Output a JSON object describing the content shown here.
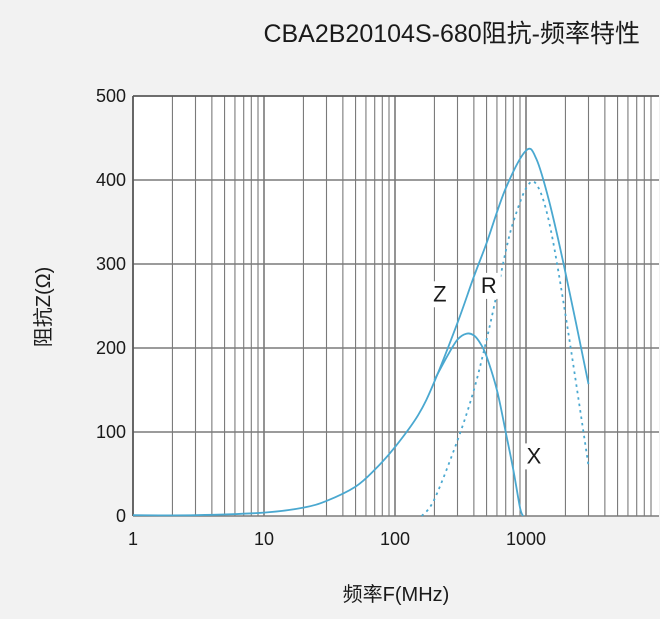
{
  "chart_data": {
    "type": "line",
    "title": "CBA2B20104S-680阻抗-频率特性",
    "xlabel": "频率F(MHz)",
    "ylabel": "阻抗Z(Ω)",
    "x_scale": "log",
    "xlim": [
      1,
      10000
    ],
    "ylim": [
      0,
      500
    ],
    "x_ticks": [
      "1",
      "10",
      "100",
      "1000"
    ],
    "y_ticks": [
      "0",
      "100",
      "200",
      "300",
      "400",
      "500"
    ],
    "grid": true,
    "colors": {
      "curve": "#4aa8d0",
      "grid": "#7a7a7a",
      "background": "#ffffff",
      "page": "#f2f2f2"
    },
    "series": [
      {
        "name": "Z",
        "style": "solid",
        "points": [
          [
            1,
            1
          ],
          [
            3,
            1
          ],
          [
            10,
            4
          ],
          [
            20,
            10
          ],
          [
            30,
            18
          ],
          [
            50,
            35
          ],
          [
            70,
            55
          ],
          [
            100,
            82
          ],
          [
            150,
            120
          ],
          [
            200,
            160
          ],
          [
            300,
            230
          ],
          [
            400,
            285
          ],
          [
            500,
            325
          ],
          [
            700,
            390
          ],
          [
            1000,
            435
          ],
          [
            1200,
            425
          ],
          [
            1500,
            375
          ],
          [
            2000,
            290
          ],
          [
            3000,
            157
          ]
        ]
      },
      {
        "name": "R",
        "style": "dotted",
        "points": [
          [
            160,
            0
          ],
          [
            200,
            20
          ],
          [
            300,
            90
          ],
          [
            400,
            150
          ],
          [
            500,
            210
          ],
          [
            600,
            265
          ],
          [
            700,
            315
          ],
          [
            800,
            350
          ],
          [
            1000,
            390
          ],
          [
            1200,
            395
          ],
          [
            1500,
            350
          ],
          [
            2000,
            240
          ],
          [
            3000,
            60
          ]
        ]
      },
      {
        "name": "X",
        "style": "solid",
        "points": [
          [
            200,
            162
          ],
          [
            250,
            190
          ],
          [
            300,
            210
          ],
          [
            350,
            217
          ],
          [
            400,
            215
          ],
          [
            450,
            205
          ],
          [
            500,
            190
          ],
          [
            600,
            150
          ],
          [
            700,
            100
          ],
          [
            800,
            55
          ],
          [
            900,
            10
          ],
          [
            950,
            0
          ]
        ]
      }
    ],
    "annotations": [
      {
        "text": "Z",
        "x": 220,
        "y": 258
      },
      {
        "text": "R",
        "x": 520,
        "y": 268
      },
      {
        "text": "X",
        "x": 1150,
        "y": 65
      }
    ]
  }
}
